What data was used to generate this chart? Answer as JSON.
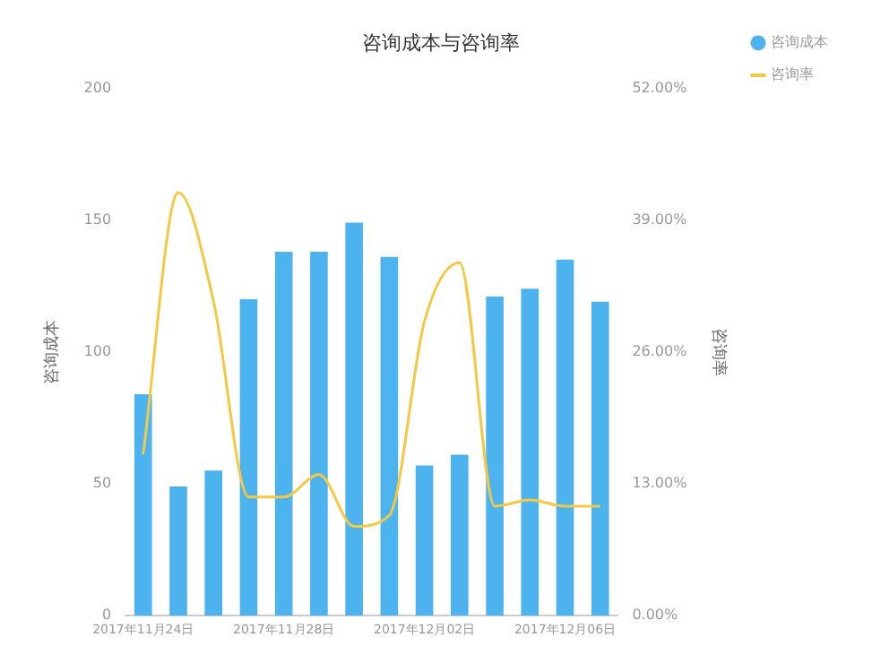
{
  "chart_data": {
    "type": "bar",
    "title": "咨询成本与咨询率",
    "ylabel": "咨询成本",
    "y2label": "咨询率",
    "categories": [
      "2017年11月24日",
      null,
      null,
      null,
      "2017年11月28日",
      null,
      null,
      null,
      "2017年12月02日",
      null,
      null,
      null,
      "2017年12月06日",
      null
    ],
    "series": [
      {
        "name": "咨询成本",
        "color": "#4db3ee",
        "values": [
          84,
          49,
          55,
          120,
          138,
          138,
          149,
          136,
          57,
          61,
          121,
          124,
          135,
          119
        ]
      },
      {
        "name": "咨询率",
        "type": "line",
        "axis": "y2",
        "color": "#f5c842",
        "values": [
          15.9,
          41.7,
          31,
          11.7,
          11.7,
          13.9,
          8.8,
          9.9,
          29,
          34.8,
          10.8,
          11.4,
          10.8,
          10.8
        ]
      }
    ],
    "ylim": [
      0,
      200
    ],
    "yticks": [
      0,
      50,
      100,
      150,
      200
    ],
    "y2lim": [
      0,
      52
    ],
    "y2ticks": [
      {
        "value": 0,
        "label": "0.00%"
      },
      {
        "value": 13,
        "label": "13.00%"
      },
      {
        "value": 26,
        "label": "26.00%"
      },
      {
        "value": 39,
        "label": "39.00%"
      },
      {
        "value": 52,
        "label": "52.00%"
      }
    ],
    "grid": false,
    "legend": "top right",
    "marker": "none"
  }
}
